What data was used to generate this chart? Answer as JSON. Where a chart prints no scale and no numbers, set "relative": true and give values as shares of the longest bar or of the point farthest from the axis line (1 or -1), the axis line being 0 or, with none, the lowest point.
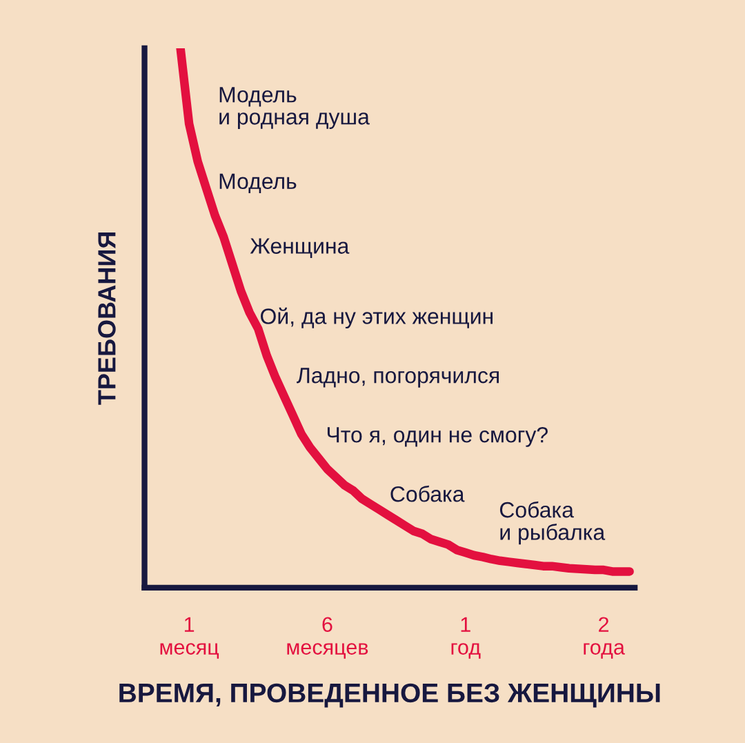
{
  "chart_data": {
    "type": "line",
    "relative": true,
    "xlabel": "ВРЕМЯ, ПРОВЕДЕННОЕ БЕЗ ЖЕНЩИНЫ",
    "ylabel": "ТРЕБОВАНИЯ",
    "categories": [
      null,
      "1\nмесяц",
      null,
      null,
      null,
      null,
      null,
      null,
      null,
      null,
      null,
      null,
      null,
      null,
      null,
      null,
      null,
      "6\nмесяцев",
      null,
      null,
      null,
      null,
      null,
      null,
      null,
      null,
      null,
      null,
      null,
      null,
      null,
      null,
      null,
      "1\nгод",
      null,
      null,
      null,
      null,
      null,
      null,
      null,
      null,
      null,
      null,
      null,
      null,
      null,
      null,
      null,
      "2\nгода",
      null,
      null,
      null
    ],
    "series": [
      {
        "color": "#e3103f",
        "values": [
          1.0,
          0.86,
          0.79,
          0.74,
          0.69,
          0.65,
          0.6,
          0.55,
          0.51,
          0.48,
          0.43,
          0.39,
          0.355,
          0.32,
          0.285,
          0.26,
          0.24,
          0.22,
          0.205,
          0.19,
          0.18,
          0.165,
          0.155,
          0.145,
          0.135,
          0.125,
          0.115,
          0.105,
          0.1,
          0.09,
          0.085,
          0.08,
          0.07,
          0.065,
          0.06,
          0.057,
          0.053,
          0.05,
          0.048,
          0.046,
          0.044,
          0.042,
          0.04,
          0.04,
          0.038,
          0.036,
          0.035,
          0.034,
          0.033,
          0.033,
          0.03,
          0.03,
          0.03
        ]
      }
    ],
    "grid": false,
    "legend": false,
    "line_style": "solid",
    "annotations": [
      "Модель\nи родная душа",
      "Модель",
      "Женщина",
      "Ой, да ну этих женщин",
      "Ладно, погорячился",
      "Что я, один не смогу?",
      "Собака",
      "Собака\nи рыбалка"
    ]
  }
}
